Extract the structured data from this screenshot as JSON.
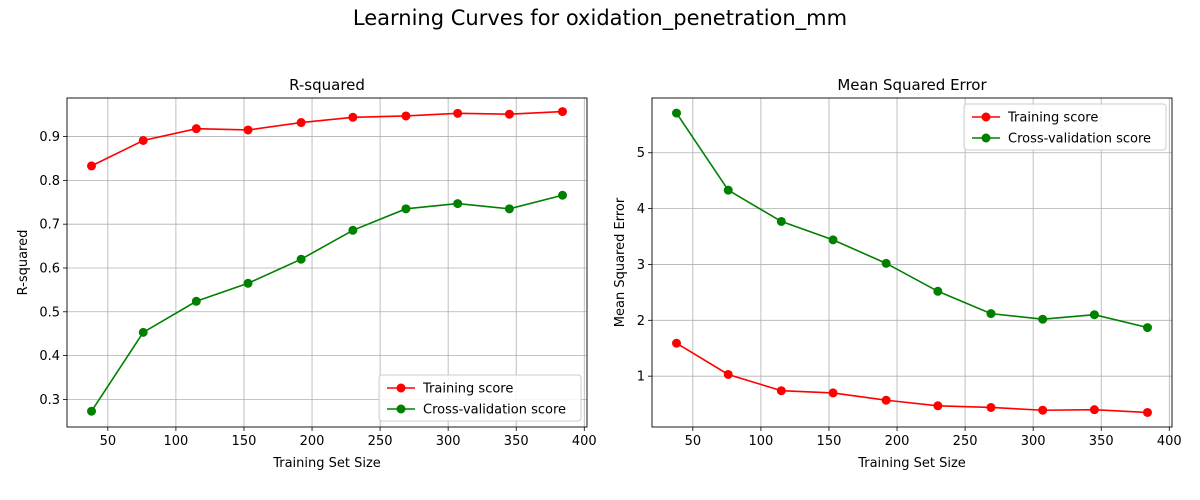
{
  "figure": {
    "title": "Learning Curves for oxidation_penetration_mm"
  },
  "chart_data": [
    {
      "type": "line",
      "title": "R-squared",
      "xlabel": "Training Set Size",
      "ylabel": "R-squared",
      "xlim": [
        20,
        402
      ],
      "ylim": [
        0.237,
        0.988
      ],
      "xticks": [
        50,
        100,
        150,
        200,
        250,
        300,
        350,
        400
      ],
      "yticks": [
        0.3,
        0.4,
        0.5,
        0.6,
        0.7,
        0.8,
        0.9
      ],
      "x": [
        38,
        76,
        115,
        153,
        192,
        230,
        269,
        307,
        345,
        384
      ],
      "grid": true,
      "legend": "lower-right",
      "series": [
        {
          "name": "Training score",
          "color": "#ff0000",
          "values": [
            0.833,
            0.891,
            0.918,
            0.915,
            0.932,
            0.944,
            0.947,
            0.953,
            0.951,
            0.957
          ]
        },
        {
          "name": "Cross-validation score",
          "color": "#008000",
          "values": [
            0.273,
            0.453,
            0.524,
            0.565,
            0.62,
            0.686,
            0.735,
            0.747,
            0.735,
            0.766
          ]
        }
      ]
    },
    {
      "type": "line",
      "title": "Mean Squared Error",
      "xlabel": "Training Set Size",
      "ylabel": "Mean Squared Error",
      "xlim": [
        20,
        402
      ],
      "ylim": [
        0.09,
        5.98
      ],
      "xticks": [
        50,
        100,
        150,
        200,
        250,
        300,
        350,
        400
      ],
      "yticks": [
        1,
        2,
        3,
        4,
        5
      ],
      "x": [
        38,
        76,
        115,
        153,
        192,
        230,
        269,
        307,
        345,
        384
      ],
      "grid": true,
      "legend": "upper-right",
      "series": [
        {
          "name": "Training score",
          "color": "#ff0000",
          "values": [
            1.59,
            1.03,
            0.74,
            0.7,
            0.57,
            0.47,
            0.44,
            0.39,
            0.4,
            0.35
          ]
        },
        {
          "name": "Cross-validation score",
          "color": "#008000",
          "values": [
            5.71,
            4.33,
            3.77,
            3.44,
            3.02,
            2.52,
            2.12,
            2.02,
            2.1,
            1.87
          ]
        }
      ]
    }
  ]
}
